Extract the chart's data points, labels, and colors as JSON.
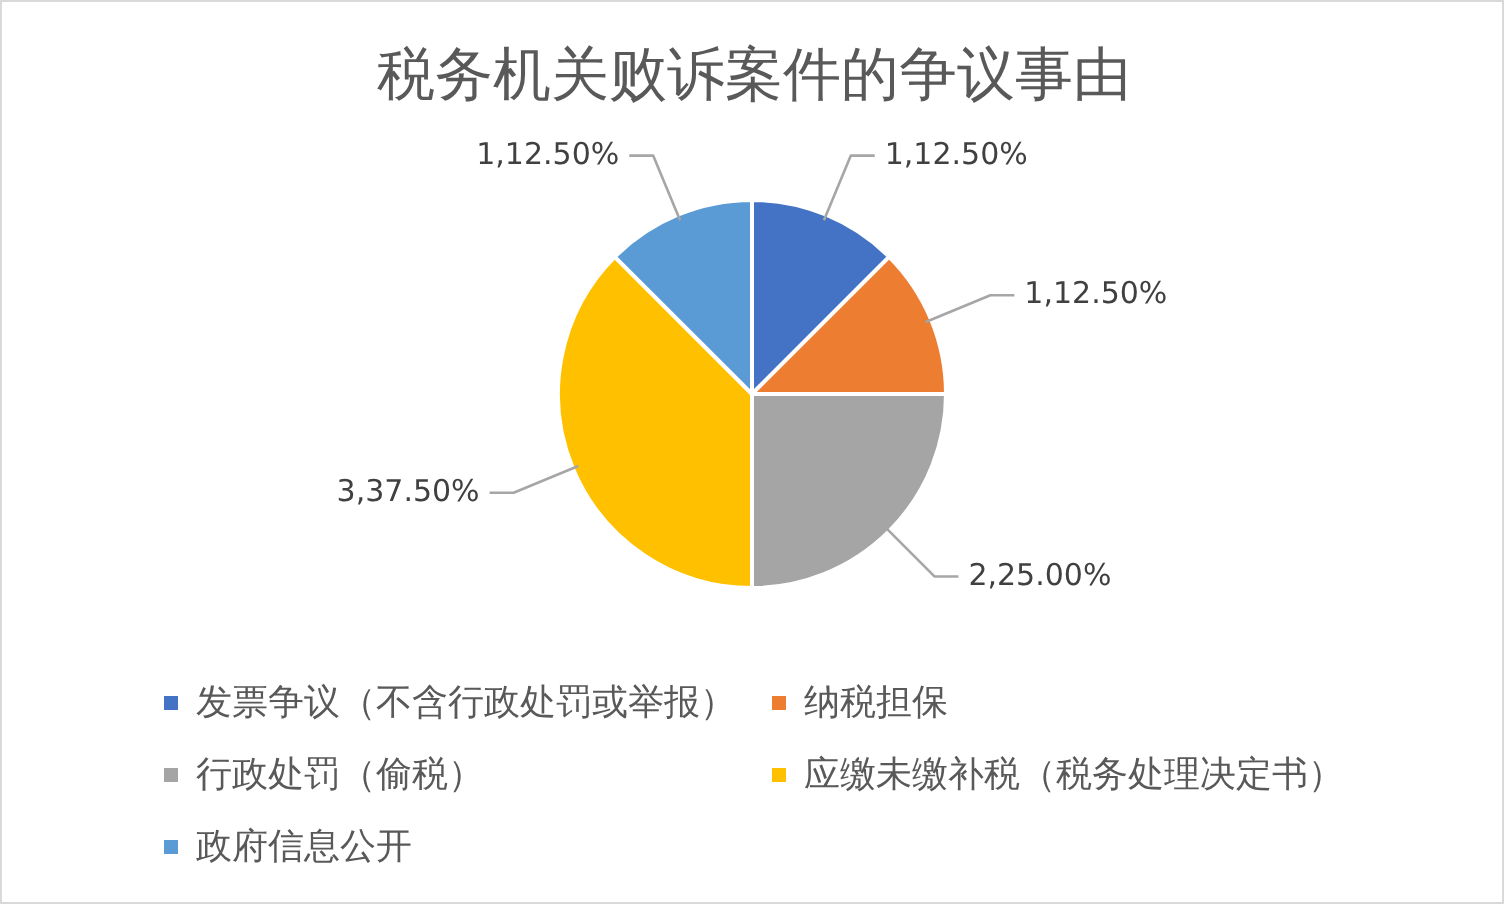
{
  "chart_data": {
    "type": "pie",
    "title": "税务机关败诉案件的争议事由",
    "categories": [
      "发票争议（不含行政处罚或举报）",
      "纳税担保",
      "行政处罚（偷税）",
      "应缴未缴补税（税务处理决定书）",
      "政府信息公开"
    ],
    "values": [
      12.5,
      12.5,
      25,
      37.5,
      12.5
    ],
    "colors": [
      "#4472c4",
      "#ed7d31",
      "#a5a5a5",
      "#ffc000",
      "#5b9bd5"
    ],
    "value_labels": [
      "1,12.50%",
      "1,12.50%",
      "2,25.00%",
      "3,37.50%",
      "1,12.50%"
    ],
    "legend": "bottom"
  }
}
